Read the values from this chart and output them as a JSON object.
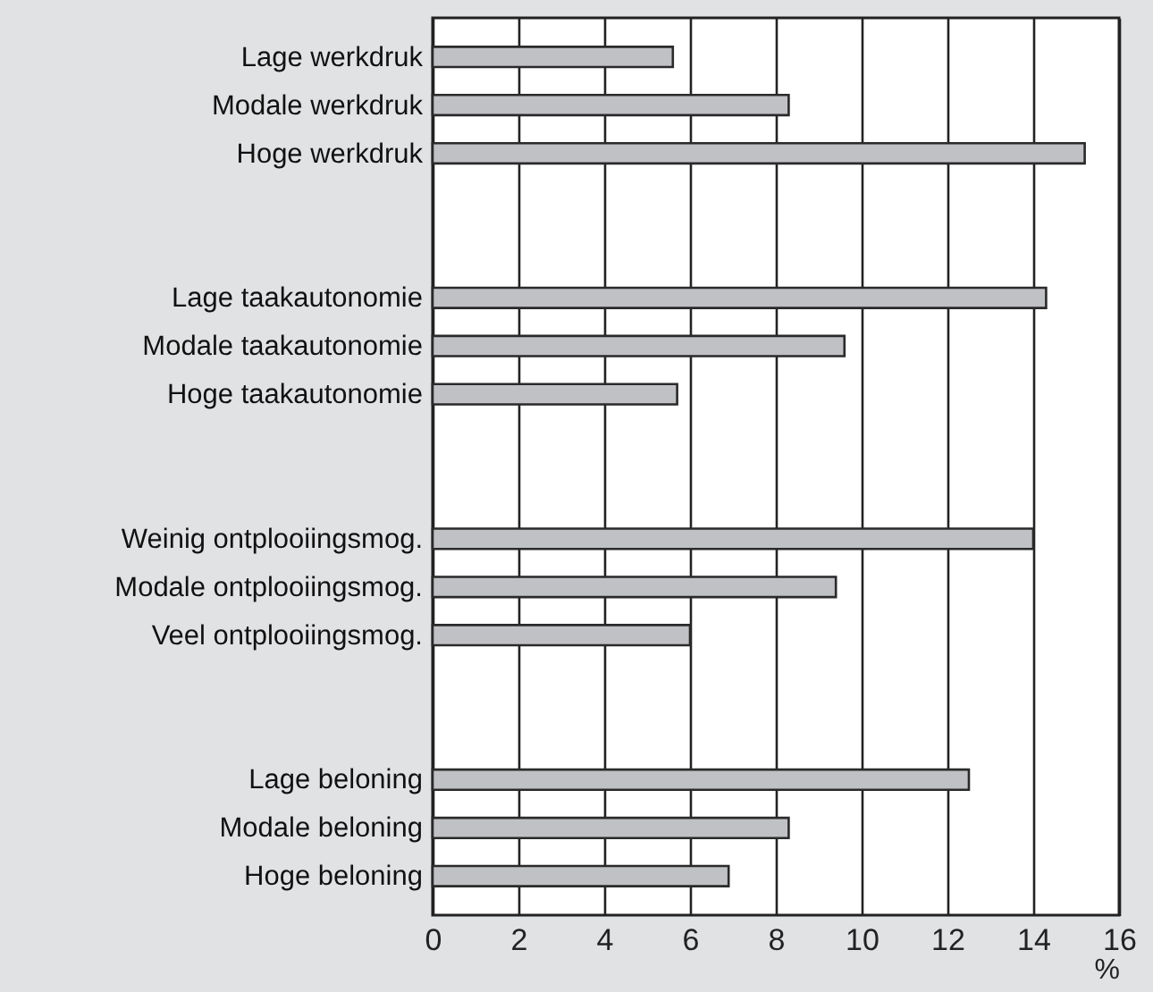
{
  "chart_data": {
    "type": "bar",
    "orientation": "horizontal",
    "xlabel": "%",
    "categories": [
      "Lage werkdruk",
      "Modale werkdruk",
      "Hoge werkdruk",
      null,
      null,
      "Lage taakautonomie",
      "Modale taakautonomie",
      "Hoge taakautonomie",
      null,
      null,
      "Weinig ontplooiingsmog.",
      "Modale ontplooiingsmog.",
      "Veel ontplooiingsmog.",
      null,
      null,
      "Lage beloning",
      "Modale beloning",
      "Hoge beloning"
    ],
    "values": [
      5.6,
      8.3,
      15.2,
      null,
      null,
      14.3,
      9.6,
      5.7,
      null,
      null,
      14.0,
      9.4,
      6.0,
      null,
      null,
      12.5,
      8.3,
      6.9
    ],
    "color": "#c0c1c5",
    "xlim": [
      0,
      16
    ],
    "xticks": [
      0,
      2,
      4,
      6,
      8,
      10,
      12,
      14,
      16
    ],
    "grid": "x"
  }
}
